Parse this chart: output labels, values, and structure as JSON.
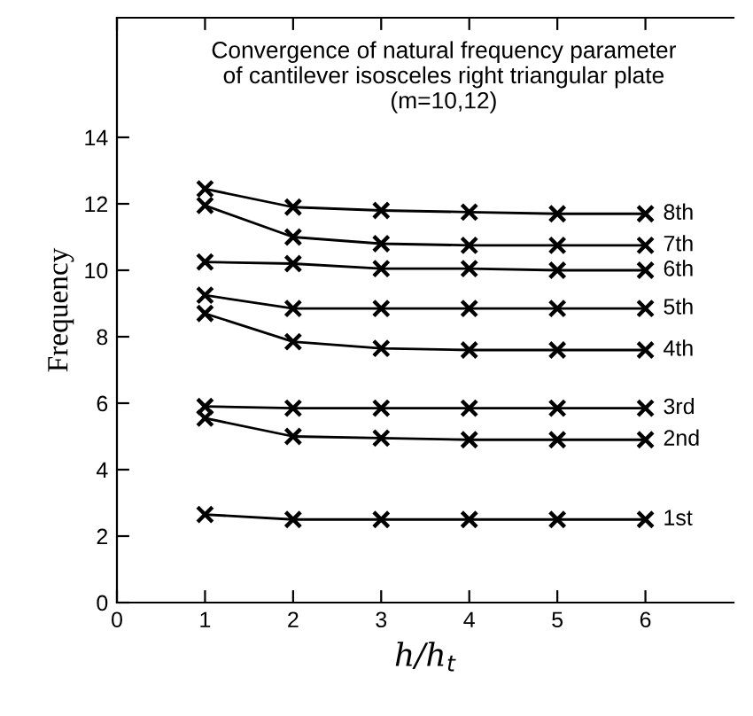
{
  "chart_data": {
    "type": "line",
    "title": "Convergence of natural frequency parameter\nof cantilever isosceles right triangular plate\n(m=10,12)",
    "xlabel": "h/h$_{t}$",
    "ylabel": "Frequency",
    "x": [
      1,
      2,
      3,
      4,
      5,
      6
    ],
    "series": [
      {
        "name": "1st",
        "color": "#000000",
        "values": [
          2.65,
          2.5,
          2.5,
          2.5,
          2.5,
          2.5
        ]
      },
      {
        "name": "2nd",
        "color": "#000000",
        "values": [
          5.55,
          5.0,
          4.95,
          4.9,
          4.9,
          4.9
        ]
      },
      {
        "name": "3rd",
        "color": "#000000",
        "values": [
          5.9,
          5.85,
          5.85,
          5.85,
          5.85,
          5.85
        ]
      },
      {
        "name": "4th",
        "color": "#000000",
        "values": [
          8.7,
          7.85,
          7.65,
          7.6,
          7.6,
          7.6
        ]
      },
      {
        "name": "5th",
        "color": "#000000",
        "values": [
          9.25,
          8.85,
          8.85,
          8.85,
          8.85,
          8.85
        ]
      },
      {
        "name": "6th",
        "color": "#000000",
        "values": [
          10.25,
          10.2,
          10.05,
          10.05,
          10.0,
          10.0
        ]
      },
      {
        "name": "7th",
        "color": "#000000",
        "values": [
          11.95,
          11.0,
          10.8,
          10.75,
          10.75,
          10.75
        ]
      },
      {
        "name": "8th",
        "color": "#000000",
        "values": [
          12.45,
          11.9,
          11.8,
          11.75,
          11.7,
          11.7
        ]
      }
    ],
    "xlim": [
      0,
      7
    ],
    "xticks": [
      0,
      1,
      2,
      3,
      4,
      5,
      6
    ],
    "ylim": [
      0,
      17.6
    ],
    "yticks": [
      0,
      2,
      4,
      6,
      8,
      10,
      12,
      14
    ],
    "marker": "cross",
    "line_style": "solid",
    "grid": false,
    "legend": false
  }
}
